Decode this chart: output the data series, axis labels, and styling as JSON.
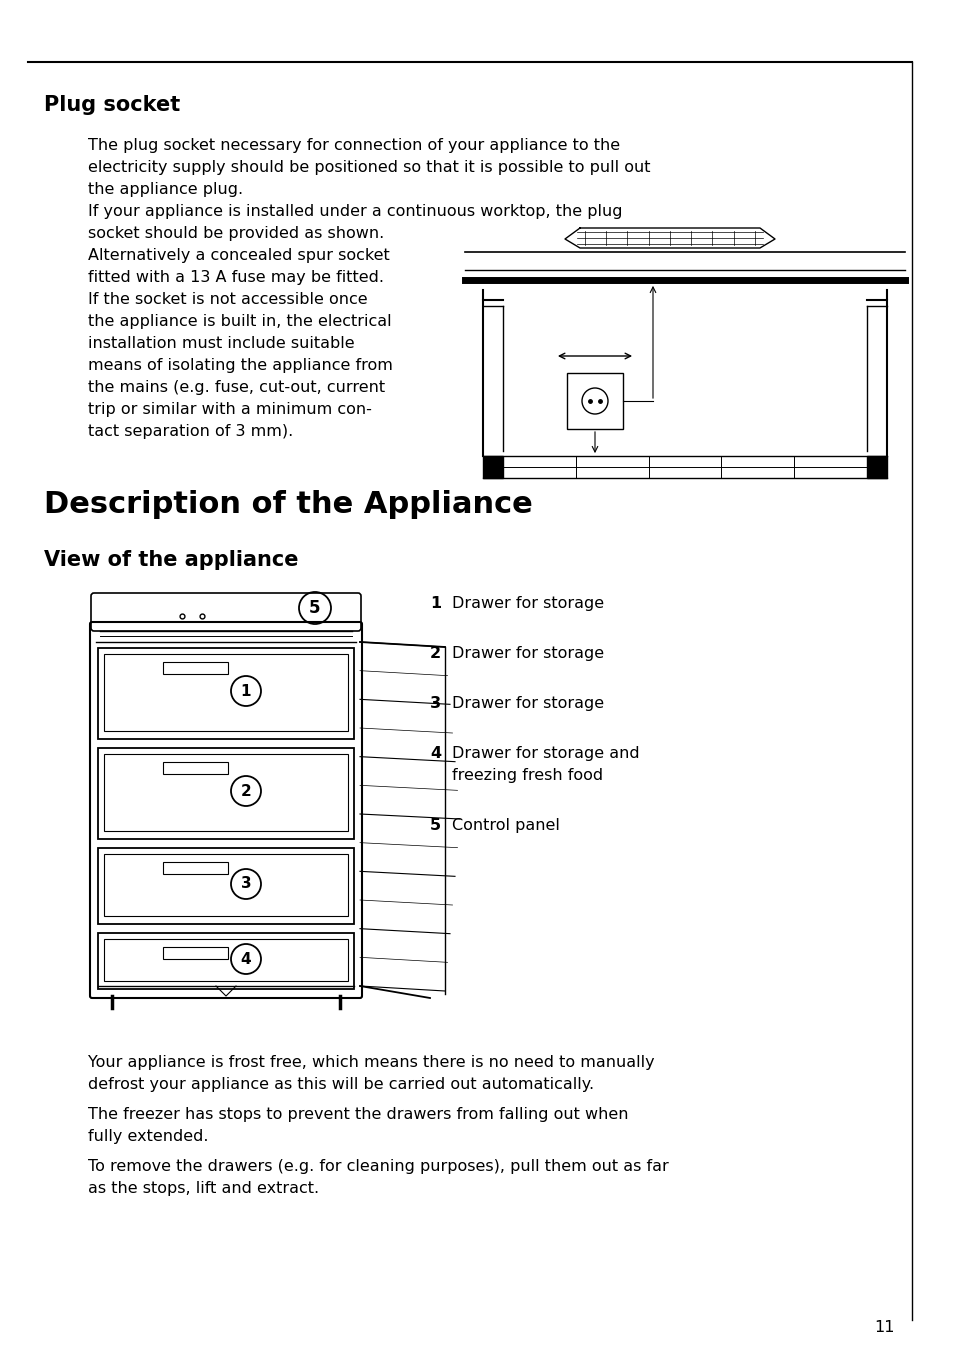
{
  "bg_color": "#ffffff",
  "text_color": "#000000",
  "page_number": "11",
  "section1_title": "Plug socket",
  "section1_body_full": [
    "The plug socket necessary for connection of your appliance to the",
    "electricity supply should be positioned so that it is possible to pull out",
    "the appliance plug.",
    "If your appliance is installed under a continuous worktop, the plug"
  ],
  "section1_body_left": [
    "socket should be provided as shown.",
    "Alternatively a concealed spur socket",
    "fitted with a 13 A fuse may be fitted.",
    "If the socket is not accessible once",
    "the appliance is built in, the electrical",
    "installation must include suitable",
    "means of isolating the appliance from",
    "the mains (e.g. fuse, cut-out, current",
    "trip or similar with a minimum con-",
    "tact separation of 3 mm)."
  ],
  "section2_title": "Description of the Appliance",
  "section2_subtitle": "View of the appliance",
  "items": [
    {
      "num": "1",
      "text": "Drawer for storage"
    },
    {
      "num": "2",
      "text": "Drawer for storage"
    },
    {
      "num": "3",
      "text": "Drawer for storage"
    },
    {
      "num": "4",
      "text": "Drawer for storage and\nfreezing fresh food"
    },
    {
      "num": "5",
      "text": "Control panel"
    }
  ],
  "footer_paragraphs": [
    "Your appliance is frost free, which means there is no need to manually\ndefrost your appliance as this will be carried out automatically.",
    "The freezer has stops to prevent the drawers from falling out when\nfully extended.",
    "To remove the drawers (e.g. for cleaning purposes), pull them out as far\nas the stops, lift and extract."
  ],
  "font_size_body": 11.5,
  "font_size_h1": 15,
  "font_size_h2": 22,
  "font_size_h3": 15
}
